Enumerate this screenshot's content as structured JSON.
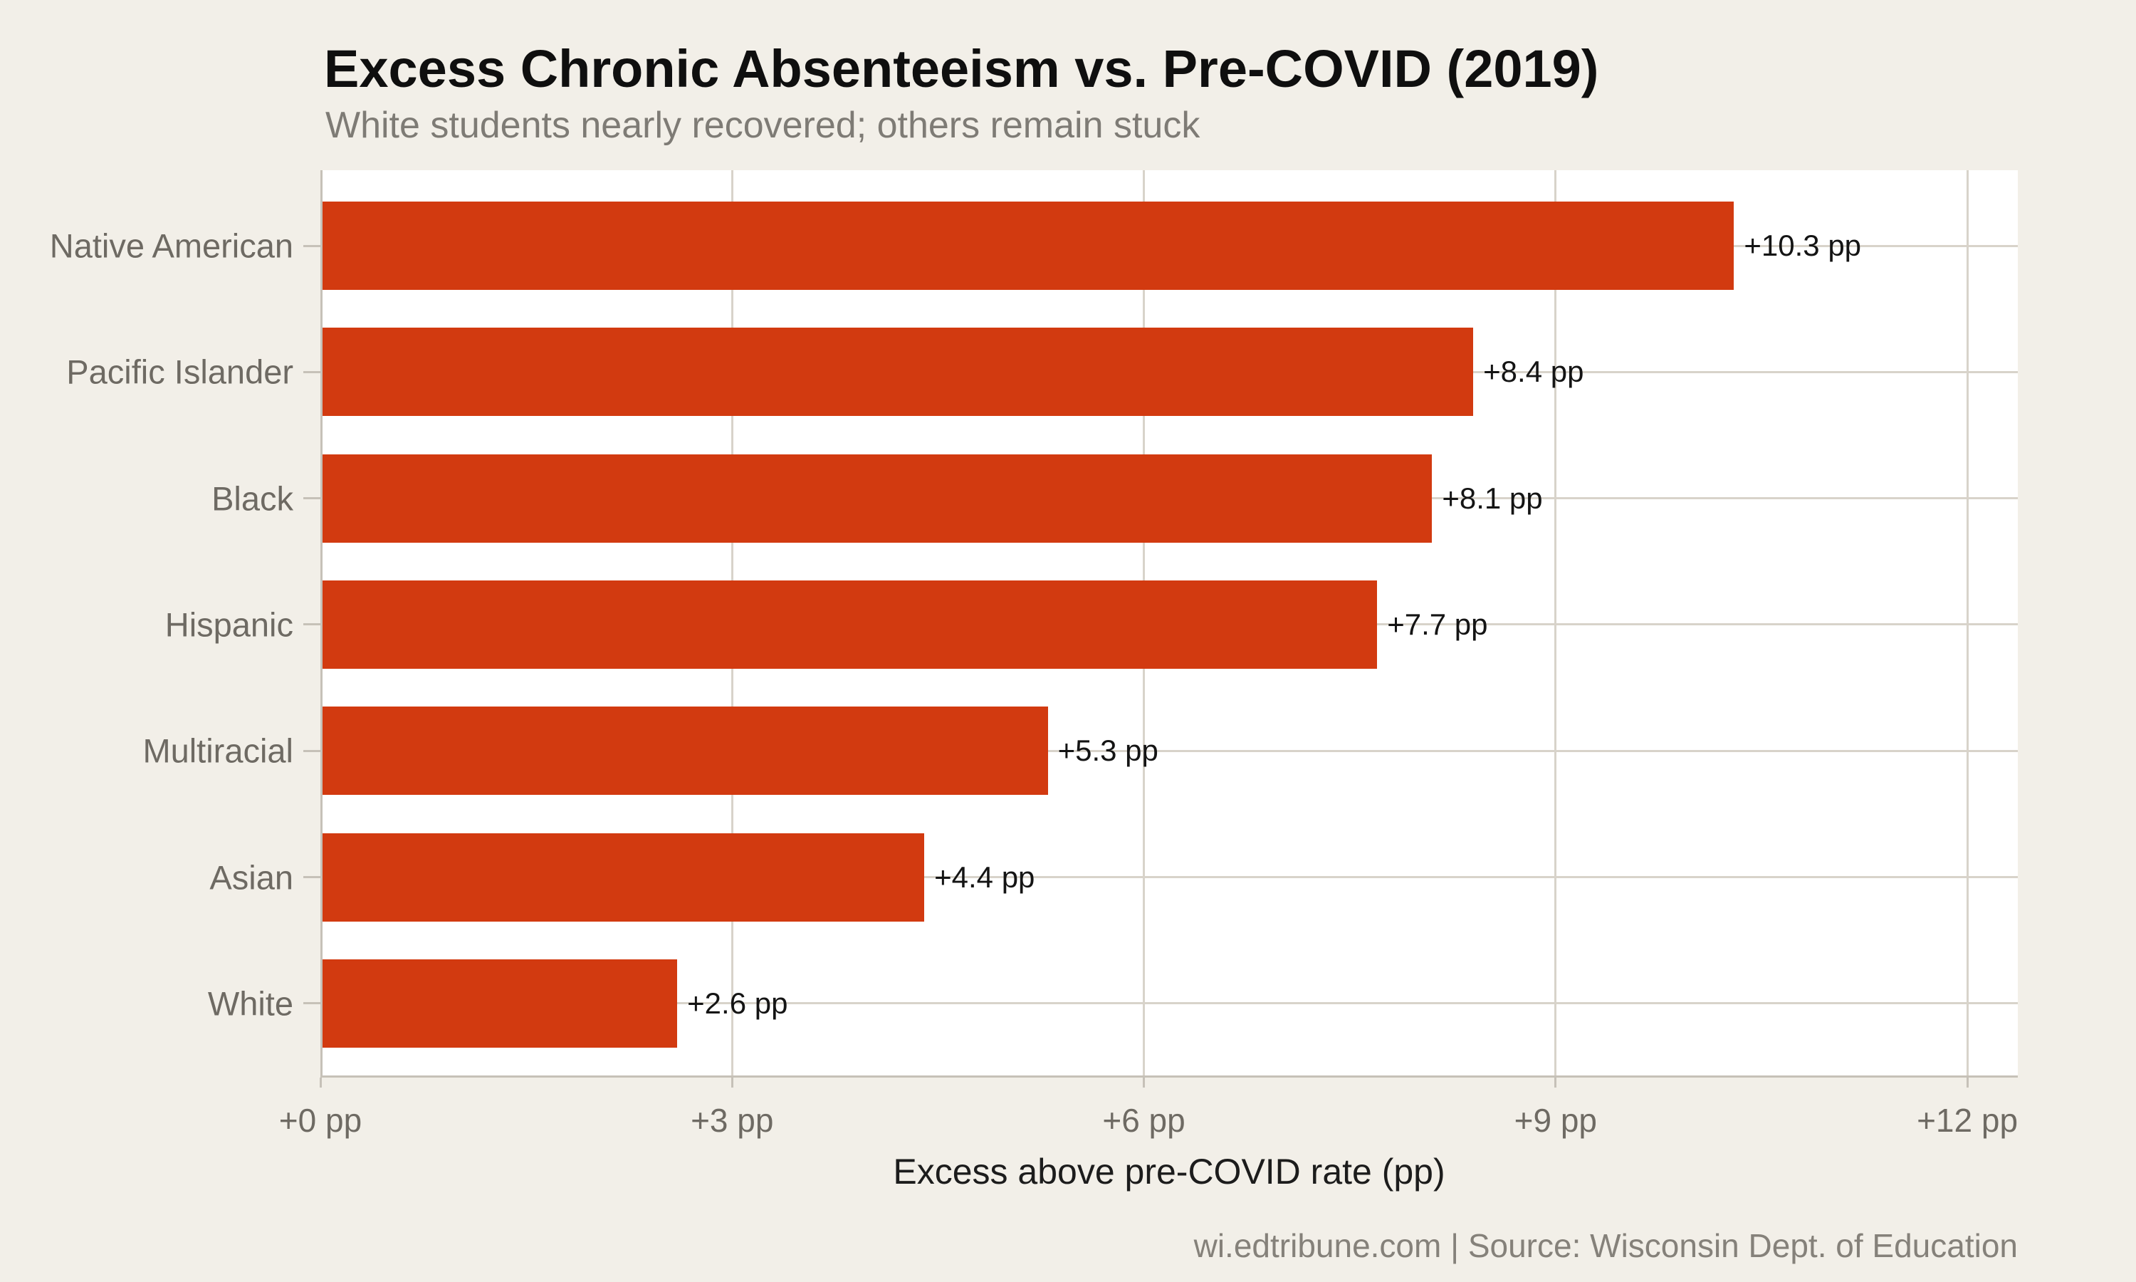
{
  "header": {
    "title": "Excess Chronic Absenteeism vs. Pre-COVID (2019)",
    "subtitle": "White students nearly recovered; others remain stuck"
  },
  "footer": {
    "credit": "wi.edtribune.com | Source: Wisconsin Dept. of Education"
  },
  "chart_data": {
    "type": "bar",
    "orientation": "horizontal",
    "title": "Excess Chronic Absenteeism vs. Pre-COVID (2019)",
    "subtitle": "White students nearly recovered; others remain stuck",
    "categories": [
      "Native American",
      "Pacific Islander",
      "Black",
      "Hispanic",
      "Multiracial",
      "Asian",
      "White"
    ],
    "values": [
      10.3,
      8.4,
      8.1,
      7.7,
      5.3,
      4.4,
      2.6
    ],
    "value_labels": [
      "+10.3 pp",
      "+8.4 pp",
      "+8.1 pp",
      "+7.7 pp",
      "+5.3 pp",
      "+4.4 pp",
      "+2.6 pp"
    ],
    "xlabel": "Excess above pre-COVID rate (pp)",
    "ylabel": "",
    "xlim": [
      0,
      12.368
    ],
    "xticks": {
      "values": [
        0,
        3,
        6,
        9,
        12
      ],
      "labels": [
        "+0 pp",
        "+3 pp",
        "+6 pp",
        "+9 pp",
        "+12 pp"
      ]
    },
    "grid": true,
    "legend_position": "none",
    "colors": {
      "bar": "#d23a10",
      "page_background": "#f2efe8",
      "plot_background": "#ffffff",
      "gridline": "#d8d3ca",
      "axis_line": "#c6c1b8",
      "title_text": "#0f0f0f",
      "subtitle_text": "#7e7b75",
      "category_text": "#6e6a63",
      "tick_text": "#6e6a63",
      "value_text": "#141414",
      "footer_text": "#85817a"
    }
  }
}
